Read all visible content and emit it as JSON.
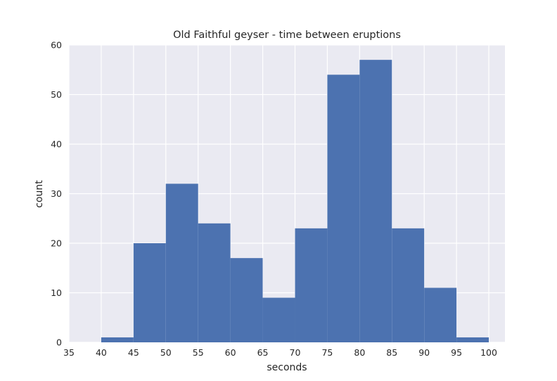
{
  "chart_data": {
    "type": "bar",
    "title": "Old Faithful geyser - time between eruptions",
    "xlabel": "seconds",
    "ylabel": "count",
    "xlim": [
      35,
      102.5
    ],
    "ylim": [
      0,
      60
    ],
    "x_ticks": [
      "35",
      "40",
      "45",
      "50",
      "55",
      "60",
      "65",
      "70",
      "75",
      "80",
      "85",
      "90",
      "95",
      "100"
    ],
    "y_ticks": [
      "0",
      "10",
      "20",
      "30",
      "40",
      "50",
      "60"
    ],
    "bins": [
      {
        "start": 40,
        "end": 45,
        "count": 1
      },
      {
        "start": 45,
        "end": 50,
        "count": 20
      },
      {
        "start": 50,
        "end": 55,
        "count": 32
      },
      {
        "start": 55,
        "end": 60,
        "count": 24
      },
      {
        "start": 60,
        "end": 65,
        "count": 17
      },
      {
        "start": 65,
        "end": 70,
        "count": 9
      },
      {
        "start": 70,
        "end": 75,
        "count": 23
      },
      {
        "start": 75,
        "end": 80,
        "count": 54
      },
      {
        "start": 80,
        "end": 85,
        "count": 57
      },
      {
        "start": 85,
        "end": 90,
        "count": 23
      },
      {
        "start": 90,
        "end": 95,
        "count": 11
      },
      {
        "start": 95,
        "end": 100,
        "count": 1
      }
    ],
    "grid": true,
    "legend": "none",
    "colors": {
      "bar": "#4c72b0",
      "plot_background": "#eaeaf2",
      "grid": "#ffffff",
      "text": "#262626"
    }
  }
}
